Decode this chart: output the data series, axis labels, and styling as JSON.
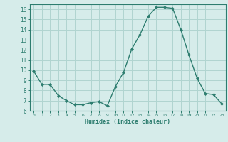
{
  "x": [
    0,
    1,
    2,
    3,
    4,
    5,
    6,
    7,
    8,
    9,
    10,
    11,
    12,
    13,
    14,
    15,
    16,
    17,
    18,
    19,
    20,
    21,
    22,
    23
  ],
  "y": [
    9.9,
    8.6,
    8.6,
    7.5,
    7.0,
    6.6,
    6.6,
    6.8,
    6.9,
    6.5,
    8.4,
    9.8,
    12.1,
    13.5,
    15.3,
    16.2,
    16.2,
    16.1,
    14.0,
    11.5,
    9.2,
    7.7,
    7.6,
    6.7
  ],
  "xlabel": "Humidex (Indice chaleur)",
  "ylim": [
    6,
    16.5
  ],
  "xlim": [
    -0.5,
    23.5
  ],
  "yticks": [
    6,
    7,
    8,
    9,
    10,
    11,
    12,
    13,
    14,
    15,
    16
  ],
  "xtick_labels": [
    "0",
    "1",
    "2",
    "3",
    "4",
    "5",
    "6",
    "7",
    "8",
    "9",
    "10",
    "11",
    "12",
    "13",
    "14",
    "15",
    "16",
    "17",
    "18",
    "19",
    "20",
    "21",
    "22",
    "23"
  ],
  "line_color": "#2d7d6f",
  "marker_color": "#2d7d6f",
  "bg_color": "#d6ecea",
  "grid_color": "#b0d4d0",
  "spine_color": "#2d7d6f",
  "tick_color": "#2d7d6f",
  "label_color": "#2d7d6f"
}
